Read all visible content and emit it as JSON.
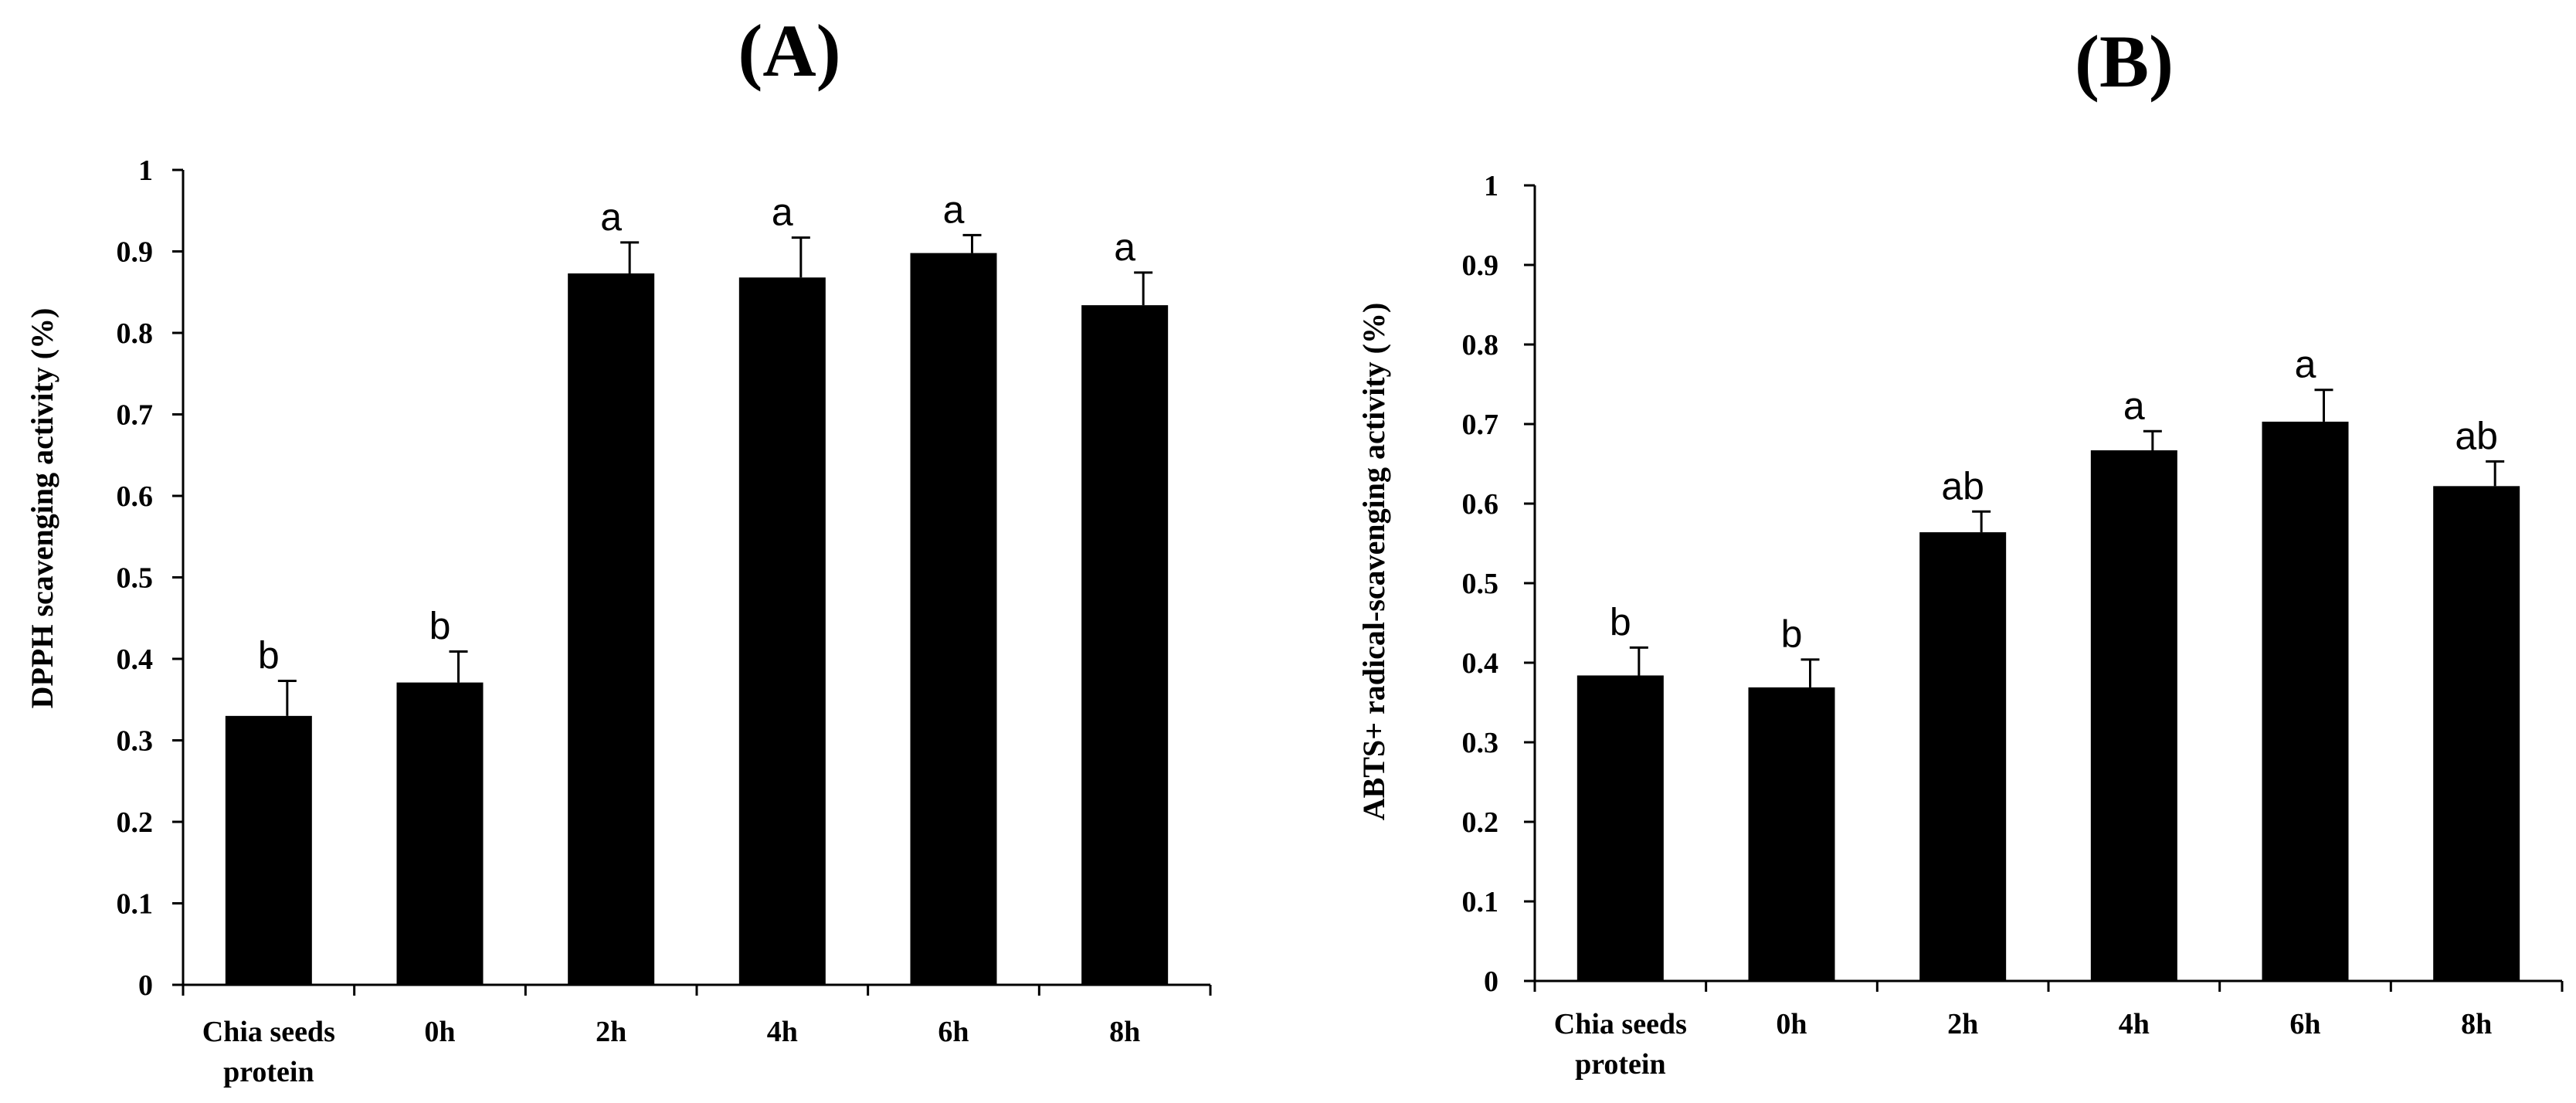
{
  "chart_data": [
    {
      "type": "bar",
      "panel_label": "(A)",
      "ylabel": "DPPH scavenging activity (%)",
      "xlabel": "",
      "ylim": [
        0,
        1
      ],
      "yticks": [
        "0",
        "0.1",
        "0.2",
        "0.3",
        "0.4",
        "0.5",
        "0.6",
        "0.7",
        "0.8",
        "0.9",
        "1"
      ],
      "categories": [
        [
          "Chia seeds",
          "protein"
        ],
        [
          "0h"
        ],
        [
          "2h"
        ],
        [
          "4h"
        ],
        [
          "6h"
        ],
        [
          "8h"
        ]
      ],
      "values": [
        0.33,
        0.371,
        0.873,
        0.868,
        0.898,
        0.834
      ],
      "errors": [
        0.043,
        0.038,
        0.038,
        0.049,
        0.022,
        0.04
      ],
      "significance": [
        "b",
        "b",
        "a",
        "a",
        "a",
        "a"
      ]
    },
    {
      "type": "bar",
      "panel_label": "(B)",
      "ylabel": "ABTS+ radical-scavenging activity  (%)",
      "xlabel": "",
      "ylim": [
        0,
        1
      ],
      "yticks": [
        "0",
        "0.1",
        "0.2",
        "0.3",
        "0.4",
        "0.5",
        "0.6",
        "0.7",
        "0.8",
        "0.9",
        "1"
      ],
      "categories": [
        [
          "Chia seeds",
          "protein"
        ],
        [
          "0h"
        ],
        [
          "2h"
        ],
        [
          "4h"
        ],
        [
          "6h"
        ],
        [
          "8h"
        ]
      ],
      "values": [
        0.384,
        0.369,
        0.564,
        0.667,
        0.703,
        0.622
      ],
      "errors": [
        0.035,
        0.035,
        0.026,
        0.024,
        0.04,
        0.031
      ],
      "significance": [
        "b",
        "b",
        "ab",
        "a",
        "a",
        "ab"
      ]
    }
  ]
}
